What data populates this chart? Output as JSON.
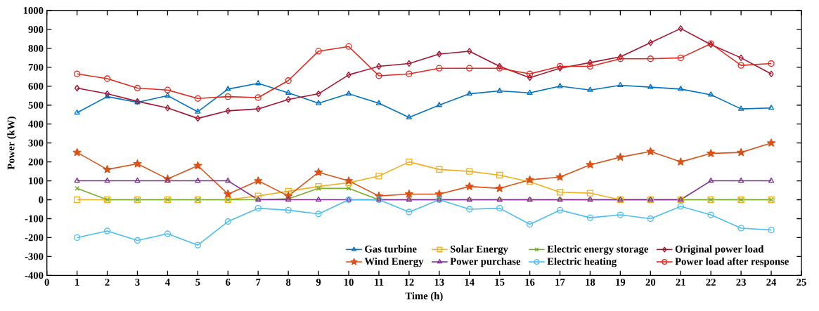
{
  "chart_data": {
    "type": "line",
    "xlabel": "Time (h)",
    "ylabel": "Power (kW)",
    "x": [
      1,
      2,
      3,
      4,
      5,
      6,
      7,
      8,
      9,
      10,
      11,
      12,
      13,
      14,
      15,
      16,
      17,
      18,
      19,
      20,
      21,
      22,
      23,
      24
    ],
    "xlim": [
      0,
      25
    ],
    "xticks": [
      0,
      1,
      2,
      3,
      4,
      5,
      6,
      7,
      8,
      9,
      10,
      11,
      12,
      13,
      14,
      15,
      16,
      17,
      18,
      19,
      20,
      21,
      22,
      23,
      24,
      25
    ],
    "ylim": [
      -400,
      1000
    ],
    "yticks": [
      -400,
      -300,
      -200,
      -100,
      0,
      100,
      200,
      300,
      400,
      500,
      600,
      700,
      800,
      900,
      1000
    ],
    "grid": false,
    "legend": "bottom right",
    "series": [
      {
        "name": "Gas turbine",
        "color": "#0072bd",
        "marker": "triangle",
        "values": [
          460,
          545,
          515,
          550,
          465,
          585,
          615,
          565,
          510,
          560,
          510,
          435,
          500,
          560,
          575,
          565,
          600,
          580,
          605,
          595,
          585,
          555,
          480,
          485
        ]
      },
      {
        "name": "Solar Energy",
        "color": "#edb120",
        "marker": "square",
        "values": [
          0,
          0,
          0,
          0,
          0,
          0,
          20,
          45,
          70,
          90,
          125,
          200,
          160,
          150,
          130,
          95,
          40,
          35,
          0,
          0,
          0,
          0,
          0,
          0
        ]
      },
      {
        "name": "Electric energy storage",
        "color": "#77ac30",
        "marker": "cross",
        "values": [
          60,
          0,
          0,
          0,
          0,
          0,
          0,
          5,
          60,
          60,
          0,
          0,
          0,
          0,
          0,
          0,
          0,
          0,
          0,
          0,
          0,
          0,
          0,
          0
        ]
      },
      {
        "name": "Original power load",
        "color": "#a2142f",
        "marker": "diamond",
        "values": [
          590,
          560,
          520,
          485,
          430,
          470,
          480,
          530,
          560,
          660,
          705,
          720,
          770,
          785,
          705,
          645,
          695,
          725,
          755,
          830,
          905,
          820,
          750,
          665
        ]
      },
      {
        "name": "Wind Energy",
        "color": "#d95319",
        "marker": "star",
        "values": [
          250,
          160,
          190,
          110,
          180,
          30,
          100,
          20,
          145,
          100,
          20,
          30,
          30,
          70,
          60,
          105,
          120,
          185,
          225,
          255,
          200,
          245,
          250,
          300
        ]
      },
      {
        "name": "Power purchase",
        "color": "#7e2f8e",
        "marker": "triangle",
        "values": [
          100,
          100,
          100,
          100,
          100,
          100,
          0,
          0,
          0,
          0,
          0,
          0,
          0,
          0,
          0,
          0,
          0,
          0,
          0,
          0,
          0,
          100,
          100,
          100
        ]
      },
      {
        "name": "Electric heating",
        "color": "#4dbeee",
        "marker": "circle",
        "values": [
          -200,
          -165,
          -215,
          -180,
          -240,
          -115,
          -45,
          -55,
          -75,
          0,
          0,
          -65,
          0,
          -50,
          -45,
          -130,
          -55,
          -95,
          -80,
          -100,
          -35,
          -80,
          -150,
          -160
        ]
      },
      {
        "name": "Power load after response",
        "color": "#e0281e",
        "marker": "circle",
        "values": [
          665,
          640,
          590,
          580,
          535,
          545,
          540,
          630,
          785,
          810,
          655,
          665,
          695,
          695,
          695,
          665,
          705,
          705,
          745,
          745,
          750,
          825,
          710,
          720
        ]
      }
    ]
  }
}
